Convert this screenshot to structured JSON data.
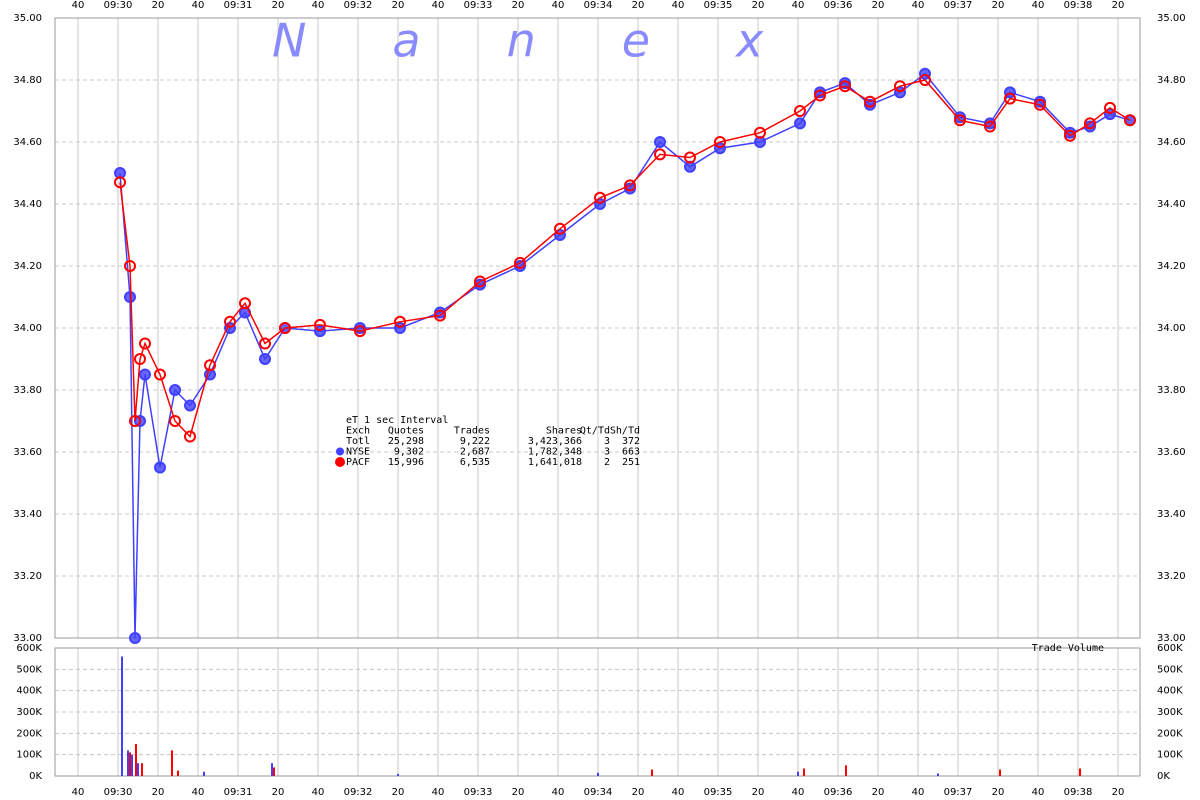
{
  "chart_data": [
    {
      "type": "scatter",
      "watermark": "Nanex",
      "x": [
        61,
        66,
        68.5,
        71,
        73.5,
        81,
        88.5,
        96,
        106,
        116,
        123.5,
        133.5,
        143.5,
        161,
        181,
        201,
        221,
        241,
        261,
        281,
        301,
        316,
        331,
        346,
        361,
        381,
        401,
        411,
        423.5,
        436,
        451,
        463.5,
        481,
        496,
        506,
        521,
        536,
        546,
        556,
        566
      ],
      "series": [
        {
          "name": "NYSE",
          "color": "#4040ff",
          "values": [
            34.5,
            34.1,
            33.0,
            33.7,
            33.85,
            33.55,
            33.8,
            33.75,
            33.85,
            34.0,
            34.05,
            33.9,
            34.0,
            33.99,
            34.0,
            34.0,
            34.05,
            34.14,
            34.2,
            34.3,
            34.4,
            34.45,
            34.6,
            34.52,
            34.58,
            34.6,
            34.66,
            34.76,
            34.79,
            34.72,
            34.76,
            34.82,
            34.68,
            34.66,
            34.76,
            34.73,
            34.63,
            34.65,
            34.69,
            34.67
          ]
        },
        {
          "name": "PACF",
          "color": "#ff0000",
          "values": [
            34.47,
            34.2,
            33.7,
            33.9,
            33.95,
            33.85,
            33.7,
            33.65,
            33.88,
            34.02,
            34.08,
            33.95,
            34.0,
            34.01,
            33.99,
            34.02,
            34.04,
            34.15,
            34.21,
            34.32,
            34.42,
            34.46,
            34.56,
            34.55,
            34.6,
            34.63,
            34.7,
            34.75,
            34.78,
            34.73,
            34.78,
            34.8,
            34.67,
            34.65,
            34.74,
            34.72,
            34.62,
            34.66,
            34.71,
            34.67
          ]
        }
      ],
      "xlim": [
        28.5,
        571
      ],
      "xticks": [
        40,
        {
          "value": 60,
          "label": "09:30"
        },
        {
          "value": 80,
          "label": "20"
        },
        {
          "value": 100,
          "label": "40"
        },
        {
          "value": 120,
          "label": "09:31"
        },
        {
          "value": 140,
          "label": "20"
        },
        {
          "value": 160,
          "label": "40"
        },
        {
          "value": 180,
          "label": "09:32"
        },
        {
          "value": 200,
          "label": "20"
        },
        {
          "value": 220,
          "label": "40"
        },
        {
          "value": 240,
          "label": "09:33"
        },
        {
          "value": 260,
          "label": "20"
        },
        {
          "value": 280,
          "label": "40"
        },
        {
          "value": 300,
          "label": "09:34"
        },
        {
          "value": 320,
          "label": "20"
        },
        {
          "value": 340,
          "label": "40"
        },
        {
          "value": 360,
          "label": "09:35"
        },
        {
          "value": 380,
          "label": "20"
        },
        {
          "value": 400,
          "label": "40"
        },
        {
          "value": 420,
          "label": "09:36"
        },
        {
          "value": 440,
          "label": "20"
        },
        {
          "value": 460,
          "label": "40"
        },
        {
          "value": 480,
          "label": "09:37"
        },
        {
          "value": 500,
          "label": "20"
        },
        {
          "value": 520,
          "label": "40"
        },
        {
          "value": 540,
          "label": "09:38"
        },
        {
          "value": 560,
          "label": "20"
        }
      ],
      "ylim": [
        33,
        35
      ],
      "yticks": [
        {
          "value": 33,
          "label": "33.00"
        },
        {
          "value": 33.2,
          "label": "33.20"
        },
        {
          "value": 33.4,
          "label": "33.40"
        },
        {
          "value": 33.6,
          "label": "33.60"
        },
        {
          "value": 33.8,
          "label": "33.80"
        },
        {
          "value": 34,
          "label": "34.00"
        },
        {
          "value": 34.2,
          "label": "34.20"
        },
        {
          "value": 34.4,
          "label": "34.40"
        },
        {
          "value": 34.6,
          "label": "34.60"
        },
        {
          "value": 34.8,
          "label": "34.80"
        },
        {
          "value": 35,
          "label": "35.00"
        }
      ],
      "grid": true,
      "stats": {
        "title": "eT 1 sec Interval",
        "columns": [
          "Exch",
          "Quotes",
          "Trades",
          "Shares",
          "Qt/Td",
          "Sh/Td"
        ],
        "rows": [
          [
            "Totl",
            "25,298",
            "9,222",
            "3,423,366",
            "3",
            "372"
          ],
          [
            "NYSE",
            "9,302",
            "2,687",
            "1,782,348",
            "3",
            "663"
          ],
          [
            "PACF",
            "15,996",
            "6,535",
            "1,641,018",
            "2",
            "251"
          ]
        ]
      }
    },
    {
      "type": "bar",
      "title": "Trade Volume",
      "series": [
        {
          "name": "NYSE",
          "color": "#4040ff",
          "x": [
            62,
            65,
            67,
            70,
            103,
            137,
            200,
            300,
            400,
            470
          ],
          "values": [
            560000,
            120000,
            100000,
            60000,
            20000,
            60000,
            10000,
            15000,
            20000,
            12000
          ]
        },
        {
          "name": "PACF",
          "color": "#ff0000",
          "x": [
            66,
            69,
            72,
            87,
            90,
            138,
            327,
            403,
            424,
            501,
            541
          ],
          "values": [
            110000,
            150000,
            60000,
            120000,
            25000,
            40000,
            30000,
            35000,
            50000,
            30000,
            35000
          ]
        }
      ],
      "xlim": [
        28.5,
        571
      ],
      "ylim": [
        0,
        600000
      ],
      "yticks": [
        {
          "value": 0,
          "label": "0K"
        },
        {
          "value": 100000,
          "label": "100K"
        },
        {
          "value": 200000,
          "label": "200K"
        },
        {
          "value": 300000,
          "label": "300K"
        },
        {
          "value": 400000,
          "label": "400K"
        },
        {
          "value": 500000,
          "label": "500K"
        },
        {
          "value": 600000,
          "label": "600K"
        }
      ],
      "grid": true
    }
  ]
}
